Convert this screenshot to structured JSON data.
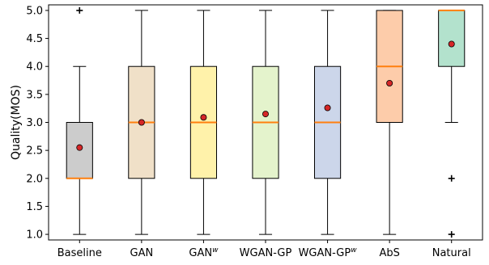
{
  "chart_data": {
    "type": "box",
    "title": "",
    "xlabel": "",
    "ylabel": "Quality(MOS)",
    "ylim": [
      0.9,
      5.1
    ],
    "yticks": [
      1.0,
      1.5,
      2.0,
      2.5,
      3.0,
      3.5,
      4.0,
      4.5,
      5.0
    ],
    "ytick_labels": [
      "1.0",
      "1.5",
      "2.0",
      "2.5",
      "3.0",
      "3.5",
      "4.0",
      "4.5",
      "5.0"
    ],
    "grid": false,
    "categories": [
      {
        "base": "Baseline",
        "sup": ""
      },
      {
        "base": "GAN",
        "sup": ""
      },
      {
        "base": "GAN",
        "sup": "w"
      },
      {
        "base": "WGAN-GP",
        "sup": ""
      },
      {
        "base": "WGAN-GP",
        "sup": "w"
      },
      {
        "base": "AbS",
        "sup": ""
      },
      {
        "base": "Natural",
        "sup": ""
      }
    ],
    "boxes": [
      {
        "whisker_low": 1.0,
        "q1": 2.0,
        "median": 2.0,
        "q3": 3.0,
        "whisker_high": 4.0,
        "mean": 2.55,
        "outliers": [
          5.0
        ],
        "color": "#cccccc"
      },
      {
        "whisker_low": 1.0,
        "q1": 2.0,
        "median": 3.0,
        "q3": 4.0,
        "whisker_high": 5.0,
        "mean": 3.0,
        "outliers": [],
        "color": "#f0e0c8"
      },
      {
        "whisker_low": 1.0,
        "q1": 2.0,
        "median": 3.0,
        "q3": 4.0,
        "whisker_high": 5.0,
        "mean": 3.09,
        "outliers": [],
        "color": "#fff2aa"
      },
      {
        "whisker_low": 1.0,
        "q1": 2.0,
        "median": 3.0,
        "q3": 4.0,
        "whisker_high": 5.0,
        "mean": 3.15,
        "outliers": [],
        "color": "#e4f3cc"
      },
      {
        "whisker_low": 1.0,
        "q1": 2.0,
        "median": 3.0,
        "q3": 4.0,
        "whisker_high": 5.0,
        "mean": 3.26,
        "outliers": [],
        "color": "#ccd6ea"
      },
      {
        "whisker_low": 1.0,
        "q1": 3.0,
        "median": 4.0,
        "q3": 5.0,
        "whisker_high": 5.0,
        "mean": 3.7,
        "outliers": [],
        "color": "#fdccaa"
      },
      {
        "whisker_low": 3.0,
        "q1": 4.0,
        "median": 5.0,
        "q3": 5.0,
        "whisker_high": 5.0,
        "mean": 4.4,
        "outliers": [
          2.0,
          1.0
        ],
        "color": "#b3e2cd"
      }
    ],
    "median_color": "#ff7f0e",
    "mean_color": "#d62728"
  }
}
